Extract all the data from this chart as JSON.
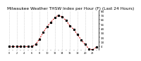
{
  "title": "Milwaukee Weather THSW Index per Hour (F) (Last 24 Hours)",
  "title_fontsize": 4.2,
  "bg_color": "#ffffff",
  "line_color": "#cc0000",
  "marker_color": "#000000",
  "grid_color": "#bbbbbb",
  "hours": [
    0,
    1,
    2,
    3,
    4,
    5,
    6,
    7,
    8,
    9,
    10,
    11,
    12,
    13,
    14,
    15,
    16,
    17,
    18,
    19,
    20,
    21,
    22,
    23
  ],
  "values": [
    3,
    3,
    3,
    3,
    3,
    3,
    3,
    8,
    20,
    35,
    48,
    58,
    68,
    74,
    70,
    62,
    50,
    42,
    30,
    18,
    8,
    -2,
    -4,
    2
  ],
  "ylim": [
    -4,
    84
  ],
  "ytick_vals": [
    84,
    74,
    64,
    54,
    44,
    34,
    24,
    14,
    4
  ],
  "xlim": [
    -0.5,
    23.5
  ],
  "xtick_positions": [
    0,
    1,
    2,
    3,
    4,
    5,
    6,
    7,
    8,
    9,
    10,
    11,
    12,
    13,
    14,
    15,
    16,
    17,
    18,
    19,
    20,
    21,
    22,
    23
  ],
  "xgrid_positions": [
    0,
    2,
    4,
    6,
    8,
    10,
    12,
    14,
    16,
    18,
    20,
    22
  ],
  "xtick_labels": [
    "0",
    "",
    "2",
    "",
    "4",
    "",
    "6",
    "",
    "8",
    "",
    "10",
    "",
    "12",
    "",
    "14",
    "",
    "16",
    "",
    "18",
    "",
    "20",
    "",
    "22",
    ""
  ]
}
